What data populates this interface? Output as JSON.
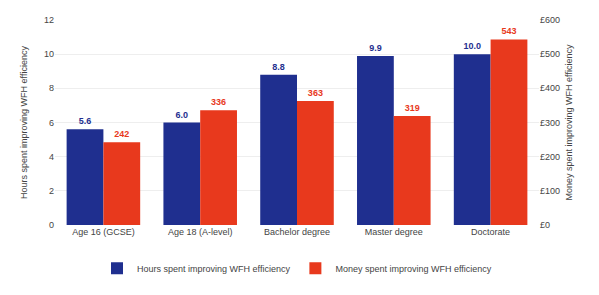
{
  "chart_data": {
    "type": "bar",
    "categories": [
      "Age 16 (GCSE)",
      "Age 18 (A-level)",
      "Bachelor degree",
      "Master degree",
      "Doctorate"
    ],
    "series": [
      {
        "name": "Hours spent improving WFH efficiency",
        "color": "#1F2F8F",
        "values": [
          5.6,
          6.0,
          8.8,
          9.9,
          10.0
        ],
        "value_labels": [
          "5.6",
          "6.0",
          "8.8",
          "9.9",
          "10.0"
        ]
      },
      {
        "name": "Money spent improving WFH efficiency",
        "color": "#E8391D",
        "values": [
          242,
          336,
          363,
          319,
          543
        ],
        "axis": "y2"
      }
    ],
    "ylabel": "Hours spent improving WFH efficiency",
    "y2label": "Money spent improving WFH efficiency",
    "ylim": [
      0,
      12
    ],
    "yticks": [
      0,
      2,
      4,
      6,
      8,
      10,
      12
    ],
    "y2lim": [
      0,
      600
    ],
    "y2ticks": [
      {
        "value": 0,
        "label": "£0"
      },
      {
        "value": 100,
        "label": "£100"
      },
      {
        "value": 200,
        "label": "£200"
      },
      {
        "value": 300,
        "label": "£300"
      },
      {
        "value": 400,
        "label": "£400"
      },
      {
        "value": 500,
        "label": "£500"
      },
      {
        "value": 600,
        "label": "£600"
      }
    ],
    "grid": true,
    "legend": "bottom",
    "data_labels": true
  }
}
